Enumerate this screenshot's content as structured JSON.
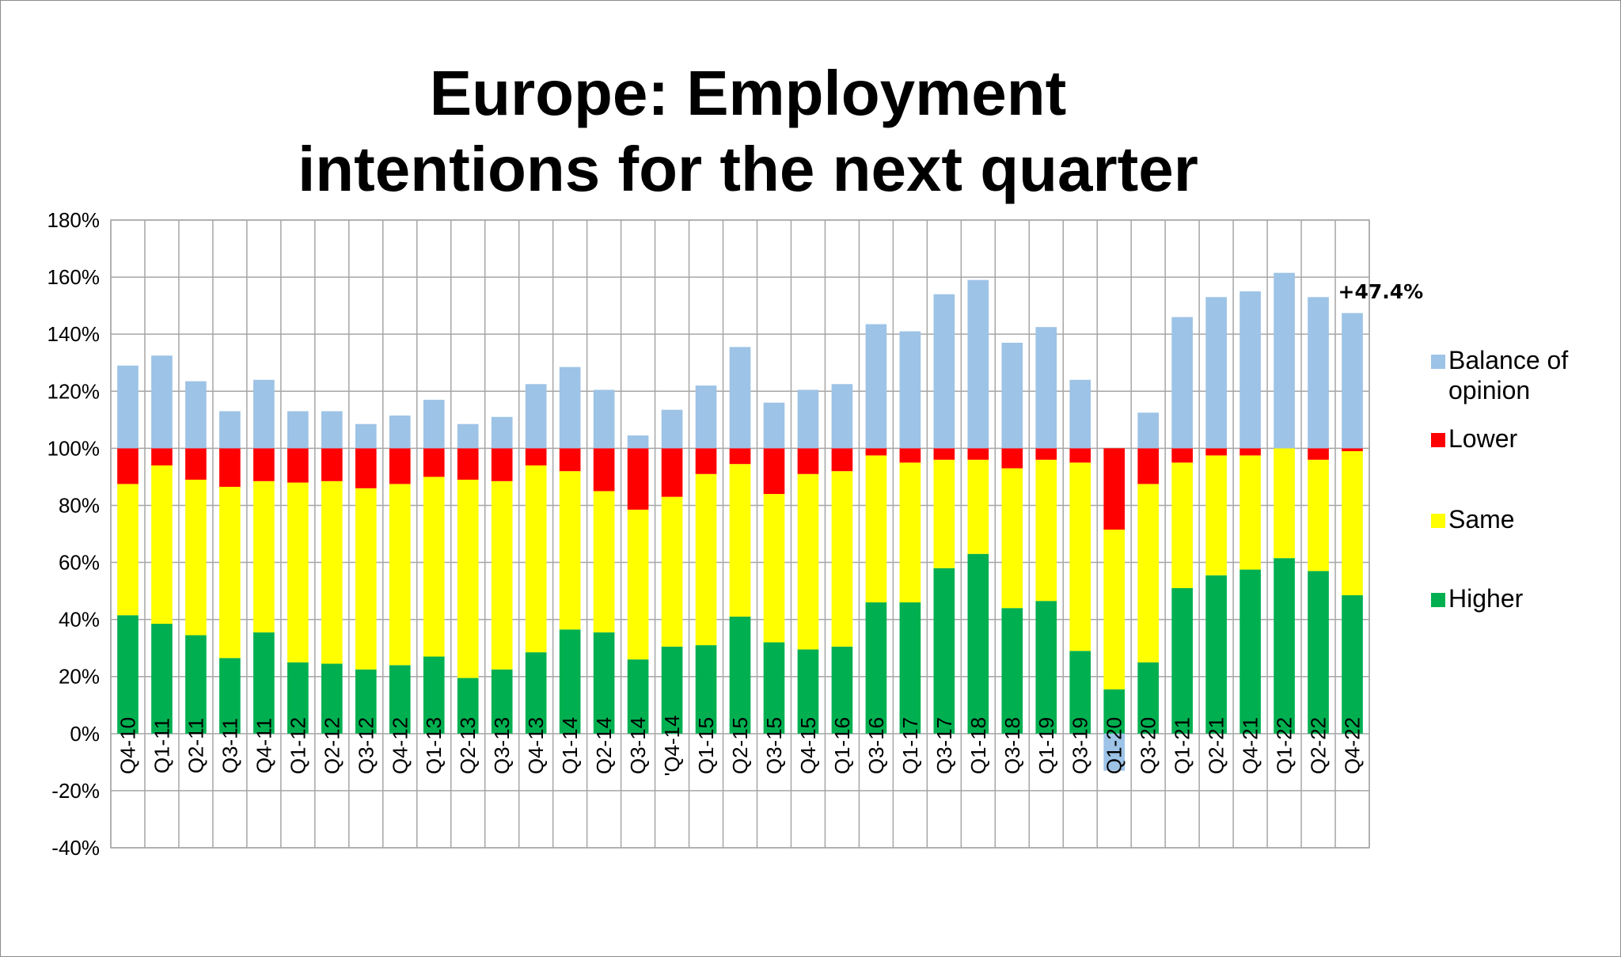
{
  "chart_data": {
    "type": "bar",
    "stacked": true,
    "title": "Europe: Employment intentions for the next quarter",
    "xlabel": "",
    "ylabel": "",
    "ylim": [
      -40,
      180
    ],
    "yticks": [
      "180%",
      "160%",
      "140%",
      "120%",
      "100%",
      "80%",
      "60%",
      "40%",
      "20%",
      "0%",
      "-20%",
      "-40%"
    ],
    "grid": true,
    "legend_position": "right",
    "categories": [
      "Q4-10",
      "Q1-11",
      "Q2-11",
      "Q3-11",
      "Q4-11",
      "Q1-12",
      "Q2-12",
      "Q3-12",
      "Q4-12",
      "Q1-13",
      "Q2-13",
      "Q3-13",
      "Q4-13",
      "Q1-14",
      "Q2-14",
      "Q3-14",
      "'Q4-14",
      "Q1-15",
      "Q2-15",
      "Q3-15",
      "Q4-15",
      "Q1-16",
      "Q3-16",
      "Q1-17",
      "Q3-17",
      "Q1-18",
      "Q3-18",
      "Q1-19",
      "Q3-19",
      "Q1-20",
      "Q3-20",
      "Q1-21",
      "Q2-21",
      "Q4-21",
      "Q1-22",
      "Q2-22",
      "Q4-22"
    ],
    "series": [
      {
        "name": "Higher",
        "color": "#00b050",
        "values": [
          41.5,
          38.5,
          34.5,
          26.5,
          35.5,
          25,
          24.5,
          22.5,
          24,
          27,
          19.5,
          22.5,
          28.5,
          36.5,
          35.5,
          26,
          30.5,
          31,
          41,
          32,
          29.5,
          30.5,
          46,
          46,
          58,
          63,
          44,
          46.5,
          29,
          15.5,
          25,
          51,
          55.5,
          57.5,
          61.5,
          57,
          48.5
        ]
      },
      {
        "name": "Same",
        "color": "#ffff00",
        "values": [
          46,
          55.5,
          54.5,
          60,
          53,
          63,
          64,
          63.5,
          63.5,
          63,
          69.5,
          66,
          65.5,
          55.5,
          49.5,
          52.5,
          52.5,
          60,
          53.5,
          52,
          61.5,
          61.5,
          51.5,
          49,
          38,
          33,
          49,
          49.5,
          66,
          56,
          62.5,
          44,
          42,
          40,
          38.5,
          39,
          50.5
        ]
      },
      {
        "name": "Lower",
        "color": "#ff0000",
        "values": [
          12.5,
          6,
          11,
          13.5,
          11.5,
          12,
          11.5,
          14,
          12.5,
          10,
          11,
          11.5,
          6,
          8,
          15,
          21.5,
          17,
          9,
          5.5,
          16,
          9,
          8,
          2.5,
          5,
          4,
          4,
          7,
          4,
          5,
          28.5,
          12.5,
          5,
          2.5,
          2.5,
          0,
          4,
          1
        ]
      },
      {
        "name": "Balance of opinion",
        "color": "#9dc3e6",
        "values": [
          29,
          32.5,
          23.5,
          13,
          24,
          13,
          13,
          8.5,
          11.5,
          17,
          8.5,
          11,
          22.5,
          28.5,
          20.5,
          4.5,
          13.5,
          22,
          35.5,
          16,
          20.5,
          22.5,
          43.5,
          41,
          54,
          59,
          37,
          42.5,
          24,
          -13,
          12.5,
          46,
          53,
          55,
          61.5,
          53,
          47.4
        ]
      }
    ],
    "annotations": [
      {
        "category": "Q4-22",
        "text": "+47.4%"
      }
    ]
  },
  "legend": {
    "items": [
      {
        "label_line1": "Balance of",
        "label_line2": "opinion",
        "color": "#9dc3e6"
      },
      {
        "label_line1": "Lower",
        "color": "#ff0000"
      },
      {
        "label_line1": "Same",
        "color": "#ffff00"
      },
      {
        "label_line1": "Higher",
        "color": "#00b050"
      }
    ]
  },
  "title_line1": "Europe: Employment",
  "title_line2": "intentions for the next quarter"
}
